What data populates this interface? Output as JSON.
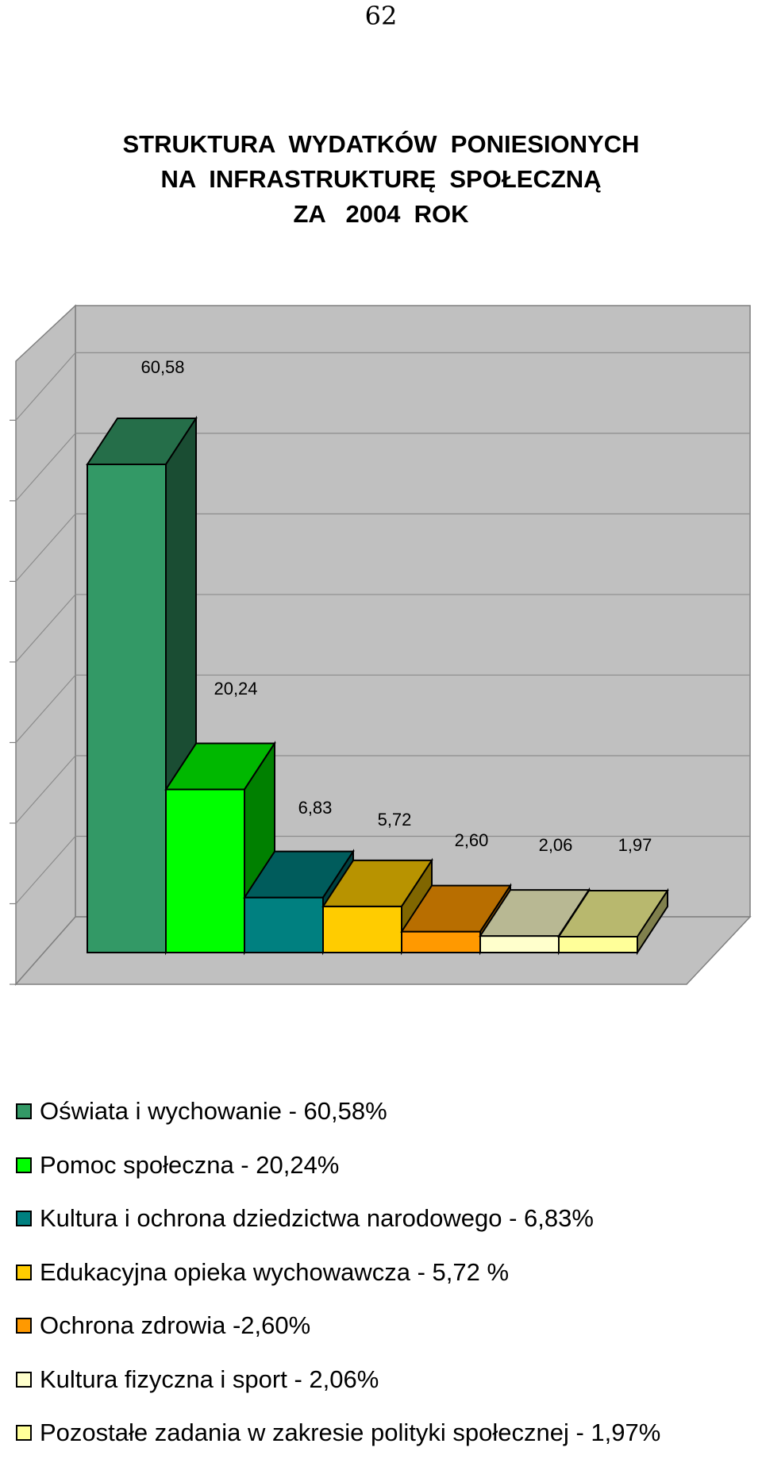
{
  "page_number": "62",
  "chart_data": {
    "type": "bar",
    "title_lines": [
      "STRUKTURA  WYDATKÓW  PONIESIONYCH",
      "NA  INFRASTRUKTURĘ  SPOŁECZNĄ",
      "ZA   2004  ROK"
    ],
    "values": [
      60.58,
      20.24,
      6.83,
      5.72,
      2.6,
      2.06,
      1.97
    ],
    "data_labels": [
      "60,58",
      "20,24",
      "6,83",
      "5,72",
      "2,60",
      "2,06",
      "1,97"
    ],
    "legend": [
      "Oświata i wychowanie - 60,58%",
      "Pomoc społeczna - 20,24%",
      "Kultura i ochrona dziedzictwa narodowego  - 6,83%",
      "Edukacyjna opieka wychowawcza - 5,72 %",
      "Ochrona zdrowia -2,60%",
      "Kultura fizyczna i sport - 2,06%",
      "Pozostałe zadania w zakresie polityki społecznej - 1,97%"
    ],
    "colors": [
      "#339966",
      "#00ff00",
      "#008080",
      "#ffcc00",
      "#ff9900",
      "#ffffcc",
      "#ffff99"
    ],
    "ylim": [
      0,
      70
    ],
    "grid": true,
    "legend_position": "bottom"
  }
}
